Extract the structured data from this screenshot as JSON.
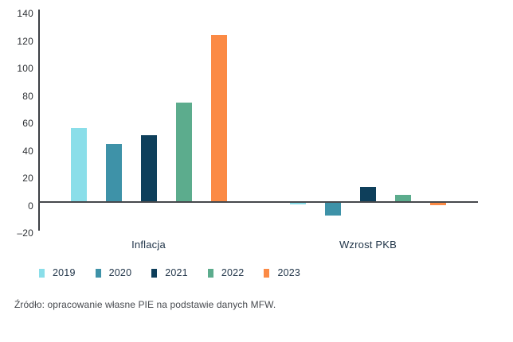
{
  "chart_data": {
    "type": "bar",
    "title": "",
    "categories": [
      "Inflacja",
      "Wzrost PKB"
    ],
    "series": [
      {
        "name": "2019",
        "color": "#8ADEE9",
        "values": [
          53.5,
          -2.0
        ]
      },
      {
        "name": "2020",
        "color": "#3E92A8",
        "values": [
          42.0,
          -9.9
        ]
      },
      {
        "name": "2021",
        "color": "#0E3F5B",
        "values": [
          48.4,
          10.7
        ]
      },
      {
        "name": "2022",
        "color": "#5CAC8D",
        "values": [
          72.4,
          5.0
        ]
      },
      {
        "name": "2023",
        "color": "#FB8A45",
        "values": [
          121.7,
          -2.5
        ]
      }
    ],
    "ylim": [
      -20,
      140
    ],
    "yticks": [
      140,
      120,
      100,
      80,
      60,
      40,
      20,
      0,
      -20
    ],
    "grid": false,
    "legend_position": "bottom",
    "xlabel": "",
    "ylabel": "",
    "source": "Źródło: opracowanie własne PIE na podstawie danych MFW."
  }
}
